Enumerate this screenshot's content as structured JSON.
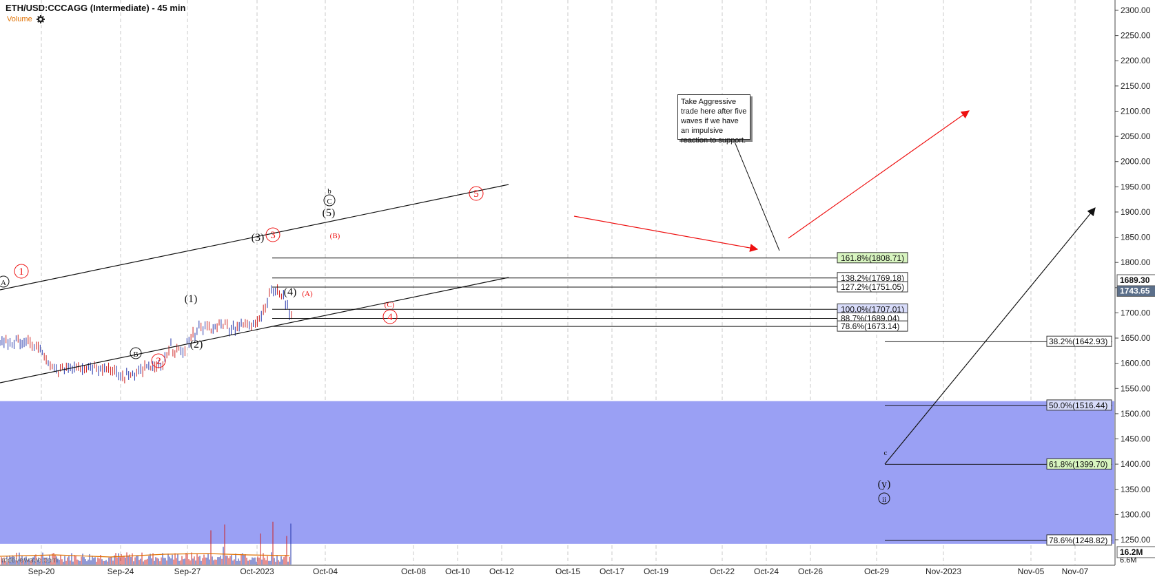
{
  "title": "ETH/USD:CCCAGG (Intermediate) - 45 min",
  "volume_label": "Volume",
  "watermark": "motivewave.com",
  "note": "Take Aggressive trade here after five waves if we have an impulsive reaction to support.",
  "colors": {
    "zone": "#9aa0f4",
    "red": "#ee1111",
    "black": "#111111",
    "green_tag": "#d8f5c0",
    "blue_tag": "#d8dcfa"
  },
  "chart_data": {
    "type": "line",
    "title": "ETH/USD:CCCAGG (Intermediate) - 45 min",
    "x_ticks": [
      "Sep-20",
      "Sep-24",
      "Sep-27",
      "Oct-2023",
      "Oct-04",
      "Oct-08",
      "Oct-10",
      "Oct-12",
      "Oct-15",
      "Oct-17",
      "Oct-19",
      "Oct-22",
      "Oct-24",
      "Oct-26",
      "Oct-29",
      "Nov-2023",
      "Nov-05",
      "Nov-07"
    ],
    "y_ticks": [
      1250,
      1300,
      1350,
      1400,
      1450,
      1500,
      1550,
      1600,
      1650,
      1700,
      1750,
      1800,
      1850,
      1900,
      1950,
      2000,
      2050,
      2100,
      2150,
      2200,
      2250,
      2300
    ],
    "y_tick_labels": [
      "1250.00",
      "1300.00",
      "1350.00",
      "1400.00",
      "1450.00",
      "1500.00",
      "1550.00",
      "1600.00",
      "1650.00",
      "1700.00",
      "1750.00",
      "1800.00",
      "1850.00",
      "1900.00",
      "1950.00",
      "2000.00",
      "2050.00",
      "2100.00",
      "2150.00",
      "2200.00",
      "2250.00",
      "2300.00"
    ],
    "ylim": [
      1225,
      2310
    ],
    "price_series": {
      "name": "ETH/USD",
      "x": [
        "Sep-18 12:00",
        "Sep-19 00:00",
        "Sep-19 12:00",
        "Sep-20 00:00",
        "Sep-20 12:00",
        "Sep-21 00:00",
        "Sep-21 12:00",
        "Sep-22 00:00",
        "Sep-22 12:00",
        "Sep-23 00:00",
        "Sep-23 12:00",
        "Sep-24 00:00",
        "Sep-24 12:00",
        "Sep-25 00:00",
        "Sep-25 12:00",
        "Sep-26 00:00",
        "Sep-26 12:00",
        "Sep-27 00:00",
        "Sep-27 12:00",
        "Sep-28 00:00",
        "Sep-28 12:00",
        "Sep-29 00:00",
        "Sep-29 12:00",
        "Sep-30 00:00",
        "Sep-30 12:00",
        "Oct-01 00:00",
        "Oct-01 12:00",
        "Oct-02 00:00",
        "Oct-02 12:00",
        "Oct-03 00:00"
      ],
      "values": [
        1645,
        1640,
        1645,
        1638,
        1628,
        1590,
        1585,
        1596,
        1594,
        1592,
        1593,
        1589,
        1570,
        1580,
        1588,
        1593,
        1588,
        1632,
        1620,
        1650,
        1675,
        1665,
        1680,
        1670,
        1675,
        1678,
        1695,
        1745,
        1738,
        1695
      ]
    },
    "current_price": "1689.30",
    "alt_price": "1743.65",
    "volume_readouts": [
      "16.2M",
      "6.6M"
    ],
    "support_zone": [
      1242,
      1525
    ],
    "fib_levels_upper": [
      {
        "label": "161.8%(1808.71)",
        "value": 1808.71,
        "tag": "green"
      },
      {
        "label": "138.2%(1769.18)",
        "value": 1769.18,
        "tag": "white"
      },
      {
        "label": "127.2%(1751.05)",
        "value": 1751.05,
        "tag": "white"
      },
      {
        "label": "100.0%(1707.01)",
        "value": 1707.01,
        "tag": "blue"
      },
      {
        "label": "88.7%(1689.04)",
        "value": 1689.04,
        "tag": "white"
      },
      {
        "label": "78.6%(1673.14)",
        "value": 1673.14,
        "tag": "white"
      }
    ],
    "fib_levels_lower": [
      {
        "label": "38.2%(1642.93)",
        "value": 1642.93,
        "tag": "white"
      },
      {
        "label": "50.0%(1516.44)",
        "value": 1516.44,
        "tag": "blue"
      },
      {
        "label": "61.8%(1399.70)",
        "value": 1399.7,
        "tag": "green"
      },
      {
        "label": "78.6%(1248.82)",
        "value": 1248.82,
        "tag": "white"
      }
    ],
    "wave_labels": [
      {
        "text": "A",
        "style": "circle-black"
      },
      {
        "text": "1",
        "style": "circle-red"
      },
      {
        "text": "B",
        "style": "circle-black"
      },
      {
        "text": "2",
        "style": "circle-red"
      },
      {
        "text": "(1)",
        "style": "paren-black"
      },
      {
        "text": "(2)",
        "style": "paren-black"
      },
      {
        "text": "(3)",
        "style": "paren-black"
      },
      {
        "text": "3",
        "style": "circle-red"
      },
      {
        "text": "(4)",
        "style": "paren-black"
      },
      {
        "text": "(5)",
        "style": "paren-black"
      },
      {
        "text": "b",
        "style": "small-black"
      },
      {
        "text": "C",
        "style": "circle-black"
      },
      {
        "text": "5",
        "style": "circle-red"
      },
      {
        "text": "(A)",
        "style": "paren-red-small"
      },
      {
        "text": "(B)",
        "style": "paren-red-small"
      },
      {
        "text": "(C)",
        "style": "paren-red-small"
      },
      {
        "text": "4",
        "style": "circle-red"
      },
      {
        "text": "c",
        "style": "small-black"
      },
      {
        "text": "(y)",
        "style": "paren-black"
      },
      {
        "text": "ii",
        "style": "circle-black"
      }
    ]
  }
}
